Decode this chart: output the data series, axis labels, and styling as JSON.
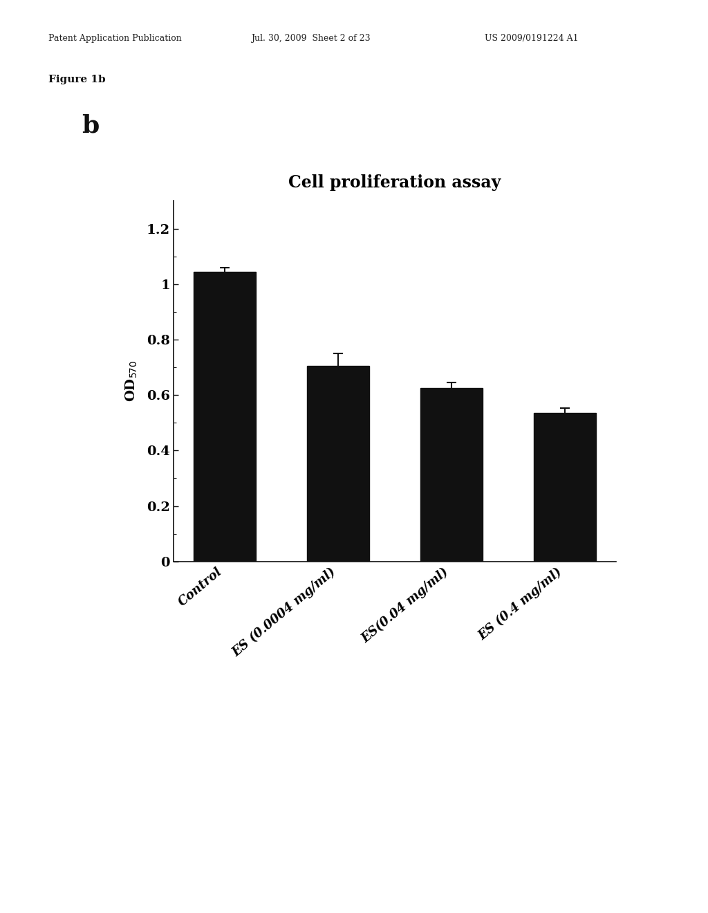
{
  "title": "Cell proliferation assay",
  "figure_label": "b",
  "figure_1b_label": "Figure 1b",
  "header_left": "Patent Application Publication",
  "header_mid": "Jul. 30, 2009  Sheet 2 of 23",
  "header_right": "US 2009/0191224 A1",
  "categories": [
    "Control",
    "ES (0.0004 mg/ml)",
    "ES(0.04 mg/ml)",
    "ES (0.4 mg/ml)"
  ],
  "values": [
    1.045,
    0.705,
    0.625,
    0.535
  ],
  "errors": [
    0.015,
    0.045,
    0.02,
    0.018
  ],
  "bar_color": "#111111",
  "bar_width": 0.55,
  "ylabel": "OD$_{570}$",
  "ylim": [
    0,
    1.3
  ],
  "yticks": [
    0,
    0.2,
    0.4,
    0.6,
    0.8,
    1.0,
    1.2
  ],
  "ytick_labels": [
    "0",
    "0.2",
    "0.4",
    "0.6",
    "0.8",
    "1",
    "1.2"
  ],
  "background_color": "#ffffff",
  "title_fontsize": 17,
  "ylabel_fontsize": 14,
  "tick_fontsize": 14,
  "figure_label_fontsize": 26,
  "header_fontsize": 9,
  "figure1b_fontsize": 11,
  "xticklabel_fontsize": 13
}
